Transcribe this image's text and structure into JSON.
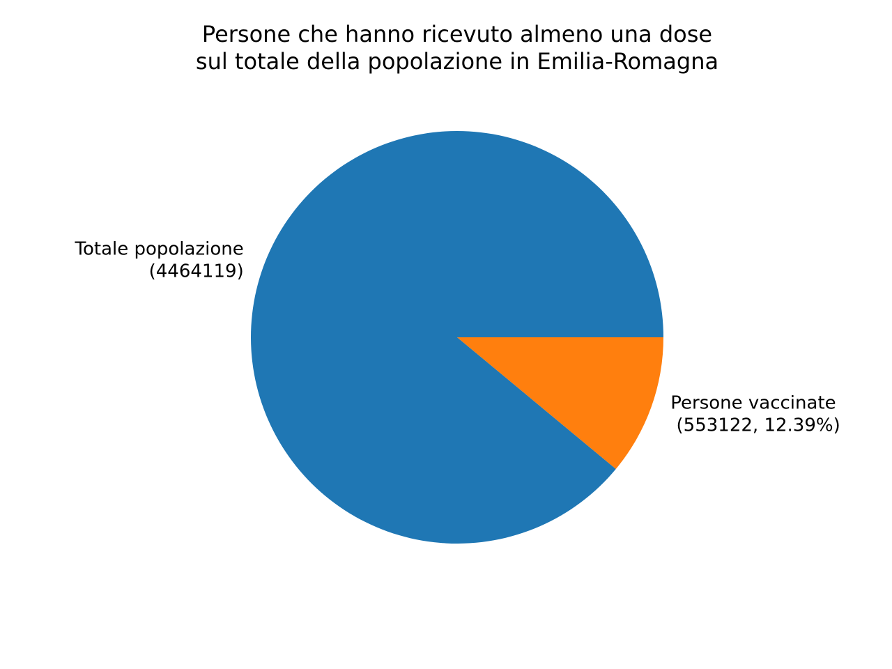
{
  "chart_data": {
    "type": "pie",
    "title_lines": [
      "Persone che hanno ricevuto almeno una dose",
      "sul totale della popolazione in Emilia-Romagna"
    ],
    "slices": [
      {
        "key": "totale",
        "value": 4464119,
        "label_lines": [
          "Totale popolazione",
          "(4464119)"
        ],
        "color": "#1f77b4"
      },
      {
        "key": "vaccinate",
        "value": 553122,
        "label_lines": [
          "Persone vaccinate",
          " (553122, 12.39%)"
        ],
        "color": "#ff7f0e"
      }
    ],
    "start_angle": 0,
    "direction": "counterclockwise",
    "legend": "none"
  }
}
